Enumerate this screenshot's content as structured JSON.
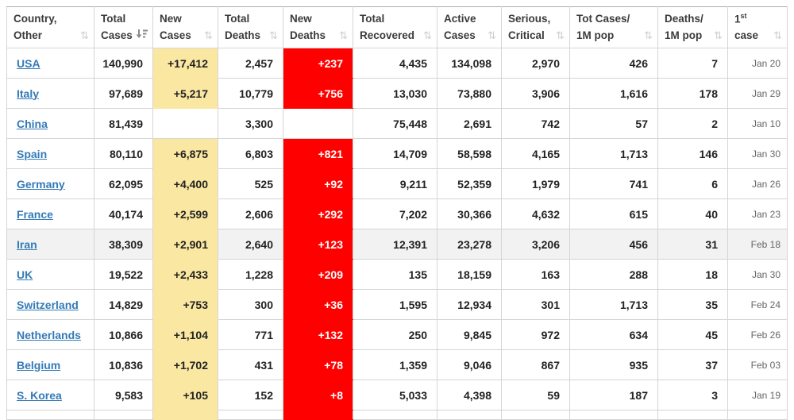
{
  "colors": {
    "link_blue": "#337ab7",
    "new_cases_bg": "#fae7a2",
    "new_deaths_bg": "#ff0000",
    "new_deaths_text": "#ffffff",
    "highlight_row_bg": "#f2f2f2",
    "header_text": "#3b3b3b",
    "cell_text": "#222222",
    "date_text": "#666666",
    "sort_icon_inactive": "#cfcfcf",
    "sort_icon_active": "#8a8a8a"
  },
  "icons": {
    "sort_both": "⇅",
    "sort_desc_name": "sort-amount-desc-icon"
  },
  "table": {
    "columns": [
      {
        "id": "country",
        "line1": "Country,",
        "line2": "Other",
        "sort": "both"
      },
      {
        "id": "total_cases",
        "line1": "Total",
        "line2": "Cases",
        "sort": "desc"
      },
      {
        "id": "new_cases",
        "line1": "New",
        "line2": "Cases",
        "sort": "both"
      },
      {
        "id": "total_deaths",
        "line1": "Total",
        "line2": "Deaths",
        "sort": "both"
      },
      {
        "id": "new_deaths",
        "line1": "New",
        "line2": "Deaths",
        "sort": "both"
      },
      {
        "id": "total_recovered",
        "line1": "Total",
        "line2": "Recovered",
        "sort": "both"
      },
      {
        "id": "active_cases",
        "line1": "Active",
        "line2": "Cases",
        "sort": "both"
      },
      {
        "id": "serious_critical",
        "line1": "Serious,",
        "line2": "Critical",
        "sort": "both"
      },
      {
        "id": "cases_per_1m",
        "line1": "Tot Cases/",
        "line2": "1M pop",
        "sort": "both"
      },
      {
        "id": "deaths_per_1m",
        "line1": "Deaths/",
        "line2": "1M pop",
        "sort": "both"
      },
      {
        "id": "first_case",
        "line1": "1",
        "line1_sup": "st",
        "line2": "case",
        "sort": "both"
      }
    ],
    "rows": [
      {
        "country": "USA",
        "total_cases": "140,990",
        "new_cases": "+17,412",
        "total_deaths": "2,457",
        "new_deaths": "+237",
        "total_recovered": "4,435",
        "active_cases": "134,098",
        "serious_critical": "2,970",
        "cases_per_1m": "426",
        "deaths_per_1m": "7",
        "first_case": "Jan 20",
        "highlighted": false
      },
      {
        "country": "Italy",
        "total_cases": "97,689",
        "new_cases": "+5,217",
        "total_deaths": "10,779",
        "new_deaths": "+756",
        "total_recovered": "13,030",
        "active_cases": "73,880",
        "serious_critical": "3,906",
        "cases_per_1m": "1,616",
        "deaths_per_1m": "178",
        "first_case": "Jan 29",
        "highlighted": false
      },
      {
        "country": "China",
        "total_cases": "81,439",
        "new_cases": "",
        "total_deaths": "3,300",
        "new_deaths": "",
        "total_recovered": "75,448",
        "active_cases": "2,691",
        "serious_critical": "742",
        "cases_per_1m": "57",
        "deaths_per_1m": "2",
        "first_case": "Jan 10",
        "highlighted": false
      },
      {
        "country": "Spain",
        "total_cases": "80,110",
        "new_cases": "+6,875",
        "total_deaths": "6,803",
        "new_deaths": "+821",
        "total_recovered": "14,709",
        "active_cases": "58,598",
        "serious_critical": "4,165",
        "cases_per_1m": "1,713",
        "deaths_per_1m": "146",
        "first_case": "Jan 30",
        "highlighted": false
      },
      {
        "country": "Germany",
        "total_cases": "62,095",
        "new_cases": "+4,400",
        "total_deaths": "525",
        "new_deaths": "+92",
        "total_recovered": "9,211",
        "active_cases": "52,359",
        "serious_critical": "1,979",
        "cases_per_1m": "741",
        "deaths_per_1m": "6",
        "first_case": "Jan 26",
        "highlighted": false
      },
      {
        "country": "France",
        "total_cases": "40,174",
        "new_cases": "+2,599",
        "total_deaths": "2,606",
        "new_deaths": "+292",
        "total_recovered": "7,202",
        "active_cases": "30,366",
        "serious_critical": "4,632",
        "cases_per_1m": "615",
        "deaths_per_1m": "40",
        "first_case": "Jan 23",
        "highlighted": false
      },
      {
        "country": "Iran",
        "total_cases": "38,309",
        "new_cases": "+2,901",
        "total_deaths": "2,640",
        "new_deaths": "+123",
        "total_recovered": "12,391",
        "active_cases": "23,278",
        "serious_critical": "3,206",
        "cases_per_1m": "456",
        "deaths_per_1m": "31",
        "first_case": "Feb 18",
        "highlighted": true
      },
      {
        "country": "UK",
        "total_cases": "19,522",
        "new_cases": "+2,433",
        "total_deaths": "1,228",
        "new_deaths": "+209",
        "total_recovered": "135",
        "active_cases": "18,159",
        "serious_critical": "163",
        "cases_per_1m": "288",
        "deaths_per_1m": "18",
        "first_case": "Jan 30",
        "highlighted": false
      },
      {
        "country": "Switzerland",
        "total_cases": "14,829",
        "new_cases": "+753",
        "total_deaths": "300",
        "new_deaths": "+36",
        "total_recovered": "1,595",
        "active_cases": "12,934",
        "serious_critical": "301",
        "cases_per_1m": "1,713",
        "deaths_per_1m": "35",
        "first_case": "Feb 24",
        "highlighted": false
      },
      {
        "country": "Netherlands",
        "total_cases": "10,866",
        "new_cases": "+1,104",
        "total_deaths": "771",
        "new_deaths": "+132",
        "total_recovered": "250",
        "active_cases": "9,845",
        "serious_critical": "972",
        "cases_per_1m": "634",
        "deaths_per_1m": "45",
        "first_case": "Feb 26",
        "highlighted": false
      },
      {
        "country": "Belgium",
        "total_cases": "10,836",
        "new_cases": "+1,702",
        "total_deaths": "431",
        "new_deaths": "+78",
        "total_recovered": "1,359",
        "active_cases": "9,046",
        "serious_critical": "867",
        "cases_per_1m": "935",
        "deaths_per_1m": "37",
        "first_case": "Feb 03",
        "highlighted": false
      },
      {
        "country": "S. Korea",
        "total_cases": "9,583",
        "new_cases": "+105",
        "total_deaths": "152",
        "new_deaths": "+8",
        "total_recovered": "5,033",
        "active_cases": "4,398",
        "serious_critical": "59",
        "cases_per_1m": "187",
        "deaths_per_1m": "3",
        "first_case": "Jan 19",
        "highlighted": false
      }
    ],
    "partial_row_visible": true
  }
}
